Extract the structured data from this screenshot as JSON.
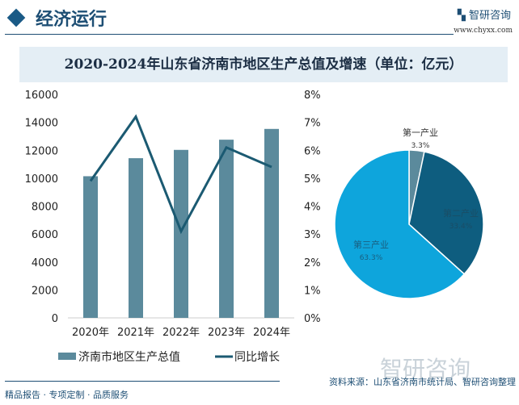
{
  "header": {
    "section_title": "经济运行",
    "logo_text": "智研咨询",
    "logo_url": "www.chyxx.com"
  },
  "chart_title": "2020-2024年山东省济南市地区生产总值及增速（单位：亿元）",
  "chart_data": [
    {
      "type": "bar+line",
      "categories": [
        "2020年",
        "2021年",
        "2022年",
        "2023年",
        "2024年"
      ],
      "series": [
        {
          "name": "济南市地区生产总值",
          "type": "bar",
          "axis": "left",
          "values": [
            10141,
            11432,
            12027,
            12757,
            13528
          ],
          "color": "#5b8a9c"
        },
        {
          "name": "同比增长",
          "type": "line",
          "axis": "right",
          "values": [
            4.9,
            7.2,
            3.1,
            6.1,
            5.4
          ],
          "color": "#1b5a72"
        }
      ],
      "left_ylim": [
        0,
        16000
      ],
      "left_ticks": [
        "0",
        "2000",
        "4000",
        "6000",
        "8000",
        "10000",
        "12000",
        "14000",
        "16000"
      ],
      "right_ylim": [
        0,
        8
      ],
      "right_ticks": [
        "0%",
        "1%",
        "2%",
        "3%",
        "4%",
        "5%",
        "6%",
        "7%",
        "8%"
      ],
      "grid": false,
      "legend": "bottom"
    },
    {
      "type": "pie",
      "slices": [
        {
          "label": "第一产业",
          "value": 3.3,
          "value_label": "3.3%",
          "color": "#5b8a9c"
        },
        {
          "label": "第二产业",
          "value": 33.4,
          "value_label": "33.4%",
          "color": "#0e5d7f"
        },
        {
          "label": "第三产业",
          "value": 63.3,
          "value_label": "63.3%",
          "color": "#0ea5dc"
        }
      ]
    }
  ],
  "footer": {
    "source": "资料来源：山东省济南市统计局、智研咨询整理",
    "tagline": "精品报告 · 专项定制 · 品质服务",
    "watermark": "智研咨询"
  }
}
